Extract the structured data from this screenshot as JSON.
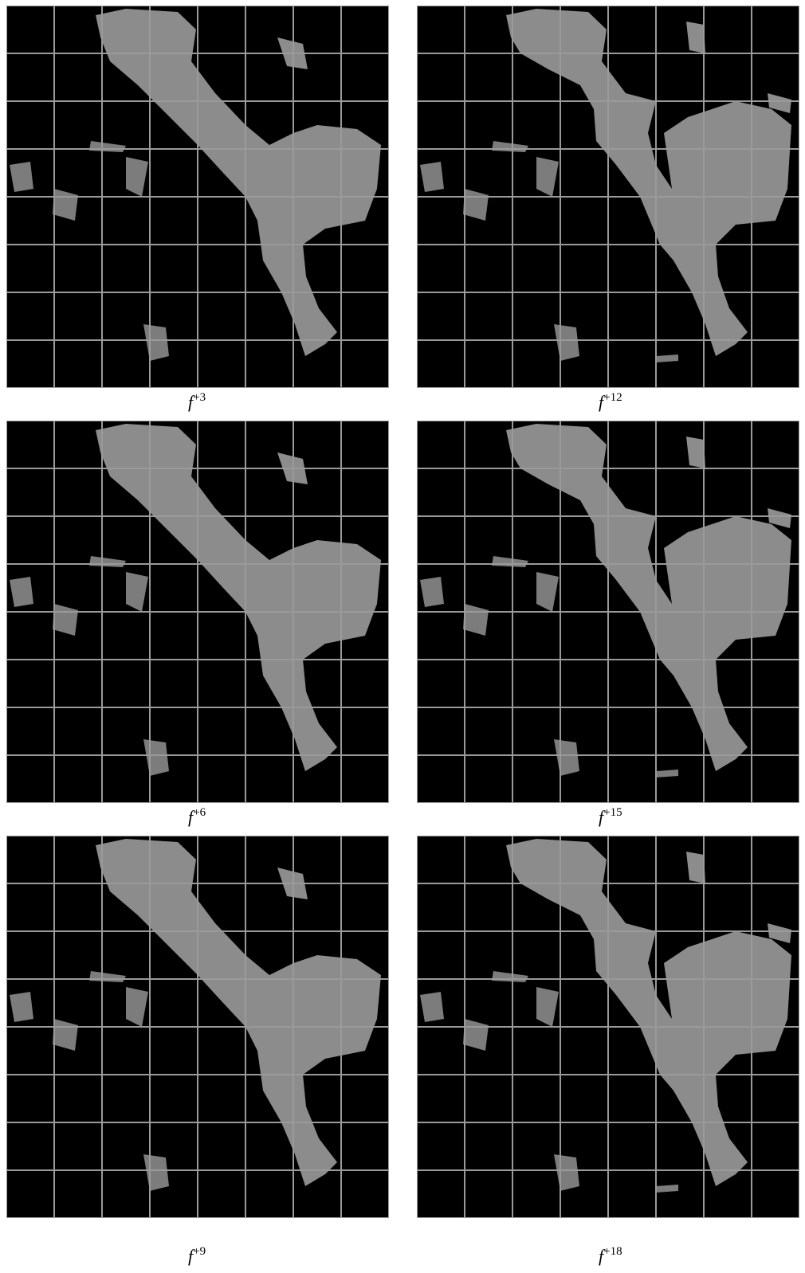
{
  "panels": [
    {
      "base": "f",
      "sup": "+3"
    },
    {
      "base": "f",
      "sup": "+12"
    },
    {
      "base": "f",
      "sup": "+6"
    },
    {
      "base": "f",
      "sup": "+15"
    },
    {
      "base": "f",
      "sup": "+9"
    },
    {
      "base": "f",
      "sup": "+18"
    }
  ]
}
